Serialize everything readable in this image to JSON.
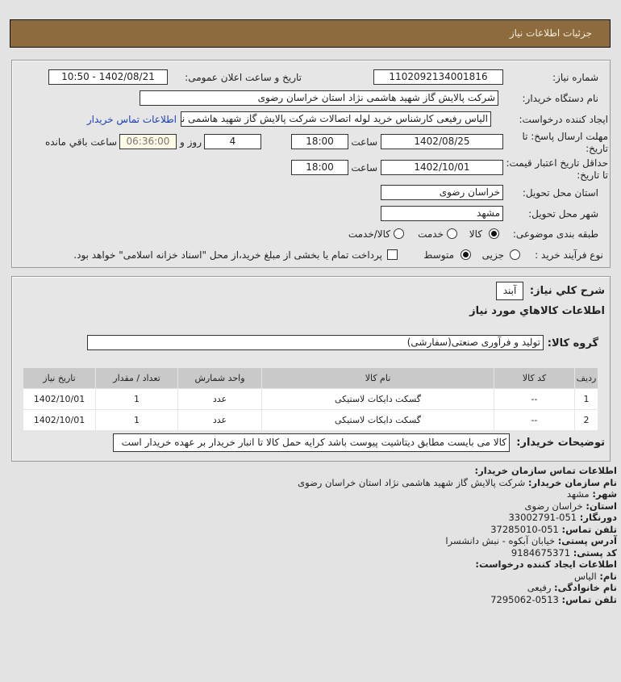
{
  "header": {
    "title": "جزئیات اطلاعات نیاز"
  },
  "form": {
    "need_number_label": "شماره نیاز:",
    "need_number": "1102092134001816",
    "announce_label": "تاریخ و ساعت اعلان عمومی:",
    "announce_value": "1402/08/21 - 10:50",
    "buyer_label": "نام دستگاه خریدار:",
    "buyer_value": "شرکت پالایش گاز شهید هاشمی نژاد   استان خراسان رضوی",
    "creator_label": "ایجاد کننده درخواست:",
    "creator_value": "الیاس رفیعی کارشناس خرید لوله اتصالات شرکت پالایش گاز شهید هاشمی نژاد",
    "contact_link": "اطلاعات تماس خریدار",
    "deadline_label": "مهلت ارسال پاسخ: تا تاریخ:",
    "deadline_date": "1402/08/25",
    "time_label": "ساعت",
    "deadline_time": "18:00",
    "days": "4",
    "days_label": "روز و",
    "remaining": "06:36:00",
    "remaining_label": "ساعت باقي مانده",
    "validity_label": "حداقل تاریخ اعتبار قیمت: تا تاریخ:",
    "validity_date": "1402/10/01",
    "validity_time": "18:00",
    "province_label": "استان محل تحویل:",
    "province": "خراسان رضوی",
    "city_label": "شهر محل تحویل:",
    "city": "مشهد",
    "category_label": "طبقه بندی موضوعی:",
    "category_options": [
      "کالا",
      "خدمت",
      "کالا/خدمت"
    ],
    "category_selected": "کالا",
    "purchase_label": "نوع فرآیند خرید :",
    "purchase_options": [
      "جزیی",
      "متوسط"
    ],
    "purchase_selected": "متوسط",
    "payment_note": "پرداخت تمام یا بخشی از مبلغ خرید،از محل \"اسناد خزانه اسلامی\" خواهد بود."
  },
  "goods": {
    "desc_label": "شرح کلي نیاز:",
    "desc_value": "آبند",
    "section_title": "اطلاعات كالاهاي مورد نياز",
    "group_label": "گروه کالا:",
    "group_value": "تولید و فرآوری صنعتی(سفارشی)",
    "columns": [
      "ردیف",
      "کد کالا",
      "نام کالا",
      "واحد شمارش",
      "تعداد / مقدار",
      "تاریخ نیاز"
    ],
    "rows": [
      [
        "1",
        "--",
        "گسکت دایکات لاستیکی",
        "عدد",
        "1",
        "1402/10/01"
      ],
      [
        "2",
        "--",
        "گسکت دایکات لاستیکی",
        "عدد",
        "1",
        "1402/10/01"
      ]
    ],
    "notes_label": "توضیحات خریدار:",
    "notes_value": "کالا می بایست مطابق دیتاشیت پیوست باشد کرایه حمل کالا تا انبار خریدار بر عهده خریدار است"
  },
  "contact": [
    {
      "label": "اطلاعات تماس سازمان خریدار:",
      "value": ""
    },
    {
      "label": "نام سازمان خریدار:",
      "value": "شرکت پالایش گاز شهید هاشمی نژاد استان خراسان رضوی"
    },
    {
      "label": "شهر:",
      "value": "مشهد"
    },
    {
      "label": "استان:",
      "value": "خراسان رضوی"
    },
    {
      "label": "دورنگار:",
      "value": "051-33002791"
    },
    {
      "label": "تلفن تماس:",
      "value": "051-37285010"
    },
    {
      "label": "آدرس پستی:",
      "value": "خیابان آبکوه - نبش دانشسرا"
    },
    {
      "label": "کد پستی:",
      "value": "9184675371"
    },
    {
      "label": "اطلاعات ایجاد کننده درخواست:",
      "value": ""
    },
    {
      "label": "نام:",
      "value": "الیاس"
    },
    {
      "label": "نام خانوادگی:",
      "value": "رفیعی"
    },
    {
      "label": "تلفن تماس:",
      "value": "0513-7295062"
    }
  ]
}
